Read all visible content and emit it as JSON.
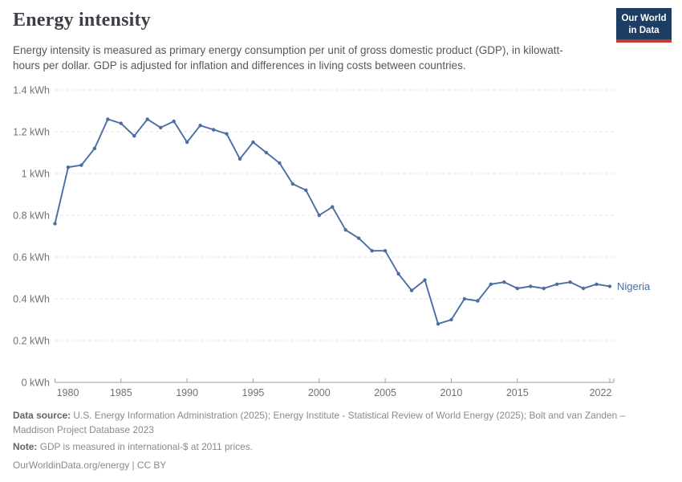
{
  "header": {
    "title": "Energy intensity",
    "subtitle": "Energy intensity is measured as primary energy consumption per unit of gross domestic product (GDP), in kilowatt-hours per dollar. GDP is adjusted for inflation and differences in living costs between countries.",
    "logo": {
      "line1": "Our World",
      "line2": "in Data"
    }
  },
  "chart_data": {
    "type": "line",
    "title": "Energy intensity",
    "unit": "kWh",
    "x": [
      1980,
      1981,
      1982,
      1983,
      1984,
      1985,
      1986,
      1987,
      1988,
      1989,
      1990,
      1991,
      1992,
      1993,
      1994,
      1995,
      1996,
      1997,
      1998,
      1999,
      2000,
      2001,
      2002,
      2003,
      2004,
      2005,
      2006,
      2007,
      2008,
      2009,
      2010,
      2011,
      2012,
      2013,
      2014,
      2015,
      2016,
      2017,
      2018,
      2019,
      2020,
      2021,
      2022
    ],
    "series": [
      {
        "name": "Nigeria",
        "color": "#4a6da3",
        "values": [
          0.76,
          1.03,
          1.04,
          1.12,
          1.26,
          1.24,
          1.18,
          1.26,
          1.22,
          1.25,
          1.15,
          1.23,
          1.21,
          1.19,
          1.07,
          1.15,
          1.1,
          1.05,
          0.95,
          0.92,
          0.8,
          0.84,
          0.73,
          0.69,
          0.63,
          0.63,
          0.52,
          0.44,
          0.49,
          0.28,
          0.3,
          0.4,
          0.39,
          0.47,
          0.48,
          0.45,
          0.46,
          0.45,
          0.47,
          0.48,
          0.45,
          0.47,
          0.46
        ]
      }
    ],
    "x_ticks": [
      1980,
      1985,
      1990,
      1995,
      2000,
      2005,
      2010,
      2015,
      2022
    ],
    "y_ticks": [
      0,
      0.2,
      0.4,
      0.6,
      0.8,
      1,
      1.2,
      1.4
    ],
    "y_tick_labels": [
      "0 kWh",
      "0.2 kWh",
      "0.4 kWh",
      "0.6 kWh",
      "0.8 kWh",
      "1 kWh",
      "1.2 kWh",
      "1.4 kWh"
    ],
    "xlim": [
      1980,
      2022
    ],
    "ylim": [
      0,
      1.4
    ],
    "grid": "horizontal-dashed",
    "legend_position": "end-of-line",
    "end_label": "Nigeria"
  },
  "footer": {
    "data_source_label": "Data source:",
    "data_source": "U.S. Energy Information Administration (2025); Energy Institute - Statistical Review of World Energy (2025); Bolt and van Zanden – Maddison Project Database 2023",
    "note_label": "Note:",
    "note": "GDP is measured in international-$ at 2011 prices.",
    "license": "OurWorldinData.org/energy | CC BY"
  },
  "colors": {
    "line": "#4a6da3",
    "grid": "#dddddd",
    "axis": "#9e9e9e",
    "tick_text": "#6e7277",
    "title": "#3b3f46",
    "subtitle": "#53585f",
    "footer": "#8a8a8a",
    "logo_bg": "#1d3d63",
    "logo_bar": "#c43a2b"
  }
}
